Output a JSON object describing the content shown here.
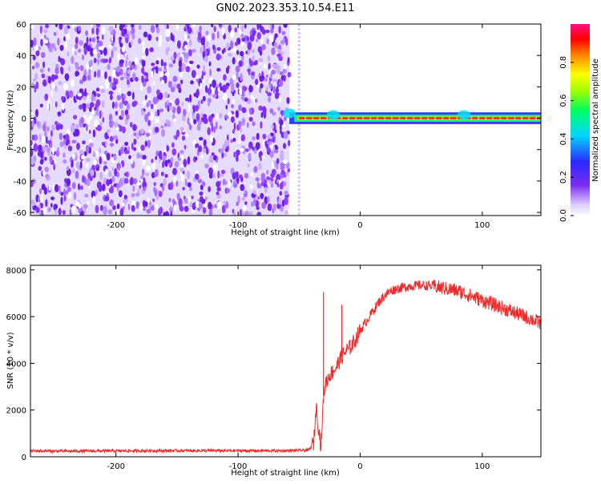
{
  "title": "GN02.2023.353.10.54.E11",
  "colors": {
    "noise_purple": "#7a2cf0",
    "line_red": "#ee2a2a",
    "axis": "#000000"
  },
  "chart_data": [
    {
      "type": "heatmap",
      "xlabel": "Height of straight line (km)",
      "ylabel": "Frequency (Hz)",
      "xlim": [
        -270,
        148
      ],
      "ylim": [
        -62,
        60
      ],
      "x_ticks": [
        "-200",
        "-100",
        "0",
        "100"
      ],
      "x_tick_values": [
        -200,
        -100,
        0,
        100
      ],
      "y_ticks": [
        "60",
        "40",
        "20",
        "0",
        "-20",
        "-40",
        "-60"
      ],
      "y_tick_values": [
        60,
        40,
        20,
        0,
        -20,
        -40,
        -60
      ],
      "noise_region_x": [
        -270,
        -58
      ],
      "signal_band": {
        "x_range": [
          -58,
          148
        ],
        "center_frequency": 0,
        "half_width": 2.5
      },
      "colorbar": {
        "label": "Normalized spectral amplitude",
        "range": [
          0,
          1
        ],
        "ticks": [
          "0.0",
          "0.2",
          "0.4",
          "0.6",
          "0.8"
        ],
        "tick_values": [
          0.0,
          0.2,
          0.4,
          0.6,
          0.8
        ]
      }
    },
    {
      "type": "line",
      "xlabel": "Height of straight line (km)",
      "ylabel": "SNR (10 * v/v)",
      "xlim": [
        -270,
        148
      ],
      "ylim": [
        0,
        8200
      ],
      "x_ticks": [
        "-200",
        "-100",
        "0",
        "100"
      ],
      "x_tick_values": [
        -200,
        -100,
        0,
        100
      ],
      "y_ticks": [
        "8000",
        "6000",
        "4000",
        "2000",
        "0"
      ],
      "y_tick_values": [
        8000,
        6000,
        4000,
        2000,
        0
      ],
      "series": [
        {
          "x": [
            -270,
            -240,
            -200,
            -150,
            -100,
            -60,
            -42,
            -38,
            -36,
            -34,
            -32,
            -30,
            -28,
            -25,
            -20,
            -16,
            -12,
            -8,
            -4,
            0,
            5,
            10,
            15,
            20,
            25,
            30,
            40,
            50,
            60,
            70,
            80,
            90,
            100,
            110,
            120,
            130,
            140,
            148
          ],
          "y": [
            250,
            240,
            250,
            260,
            255,
            260,
            280,
            600,
            2200,
            1200,
            400,
            2600,
            3200,
            3500,
            3800,
            4200,
            4500,
            4700,
            5000,
            5400,
            5800,
            6200,
            6600,
            6900,
            7100,
            7200,
            7300,
            7350,
            7300,
            7200,
            7100,
            6900,
            6700,
            6500,
            6300,
            6100,
            5900,
            5700
          ]
        }
      ],
      "spikes": [
        {
          "x": -30,
          "y": 7050
        },
        {
          "x": -15,
          "y": 6500
        }
      ]
    }
  ]
}
